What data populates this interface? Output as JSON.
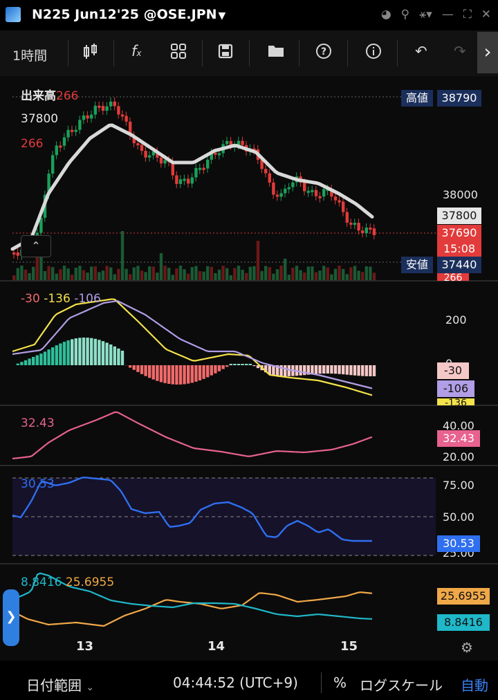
{
  "window": {
    "title": "N225 Jun12'25 @OSE.JPN"
  },
  "toolbar": {
    "interval": "1時間"
  },
  "price_pane": {
    "volume_label": "出来高",
    "volume_value": "266",
    "last_price_label": "37800",
    "volume_value_2": "266",
    "high_label": "高値",
    "high_value": "38790",
    "low_label": "安値",
    "low_value": "37440",
    "axis_38000": "38000",
    "ma_tag": "37800",
    "price_tag": "37690",
    "countdown_tag": "15:08",
    "volume_tag": "266",
    "colors": {
      "up": "#1aa05a",
      "down": "#e23b3b",
      "ma": "#d9d9d9",
      "tag_red": "#e23b3b",
      "tag_navy": "#1b2f5c"
    }
  },
  "macd_pane": {
    "v1": "-30",
    "v2": "-136",
    "v3": "-106",
    "axis_200": "200",
    "axis_0": "0",
    "tag_hist": "-30",
    "tag_signal": "-106",
    "tag_macd": "-136",
    "colors": {
      "macd": "#f3e24a",
      "signal": "#b19ee6",
      "hist_pos": "#8fe0c8",
      "hist_neg": "#f06a6a"
    }
  },
  "adx_pane": {
    "value": "32.43",
    "axis_40": "40.00",
    "axis_20": "20.00",
    "tag": "32.43",
    "color": "#e8628f"
  },
  "rsi_pane": {
    "value": "30.53",
    "axis_75": "75.00",
    "axis_50": "50.00",
    "axis_25": "25.00",
    "tag": "30.53",
    "color": "#2f6ff0"
  },
  "dmi_pane": {
    "v1": "8.8416",
    "v2": "25.6955",
    "tag_orange": "25.6955",
    "tag_cyan": "8.8416",
    "colors": {
      "cyan": "#1fb8c9",
      "orange": "#f0a848"
    }
  },
  "x_axis": {
    "labels": [
      "13",
      "14",
      "15"
    ]
  },
  "bottom": {
    "date_range": "日付範囲",
    "time": "04:44:52 (UTC+9)",
    "percent": "%",
    "log_scale": "ログスケール",
    "auto": "自動"
  }
}
